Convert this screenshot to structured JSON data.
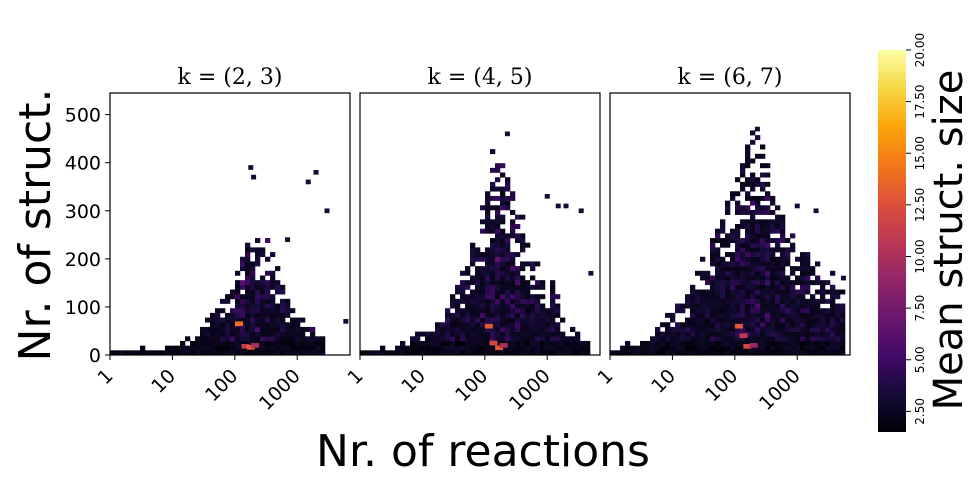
{
  "chart_data": {
    "type": "heatmap",
    "xlabel": "Nr. of reactions",
    "ylabel": "Nr. of struct.",
    "x_scale": "log",
    "xlim": [
      1,
      7000
    ],
    "ylim": [
      0,
      545
    ],
    "x_ticks": [
      1,
      10,
      100,
      1000
    ],
    "x_tick_labels": [
      "1",
      "10",
      "100",
      "1000"
    ],
    "y_ticks": [
      0,
      100,
      200,
      300,
      400,
      500
    ],
    "y_tick_labels": [
      "0",
      "100",
      "200",
      "300",
      "400",
      "500"
    ],
    "colorbar": {
      "label": "Mean struct. size",
      "colormap": "inferno",
      "range": [
        1.5,
        20
      ],
      "ticks": [
        2.5,
        5.0,
        7.5,
        10.0,
        12.5,
        15.0,
        17.5,
        20.0
      ],
      "tick_labels": [
        "2.50",
        "5.00",
        "7.50",
        "10.00",
        "12.50",
        "15.00",
        "17.50",
        "20.00"
      ]
    },
    "panels": [
      {
        "title": "k = (2, 3)",
        "envelope": [
          [
            1,
            8
          ],
          [
            10,
            20
          ],
          [
            30,
            60
          ],
          [
            60,
            120
          ],
          [
            100,
            150
          ],
          [
            150,
            230
          ],
          [
            200,
            260
          ],
          [
            300,
            250
          ],
          [
            500,
            170
          ],
          [
            800,
            100
          ],
          [
            1500,
            60
          ],
          [
            3000,
            40
          ]
        ],
        "outliers": [
          [
            180,
            390
          ],
          [
            200,
            370
          ],
          [
            1500,
            360
          ],
          [
            2000,
            380
          ],
          [
            700,
            240
          ],
          [
            3000,
            300
          ],
          [
            6000,
            70
          ]
        ],
        "hot_spots": [
          {
            "x": 110,
            "y": 65,
            "value": 14
          },
          {
            "x": 140,
            "y": 18,
            "value": 11
          },
          {
            "x": 170,
            "y": 16,
            "value": 13
          },
          {
            "x": 200,
            "y": 20,
            "value": 10
          }
        ]
      },
      {
        "title": "k = (4, 5)",
        "envelope": [
          [
            1,
            8
          ],
          [
            5,
            25
          ],
          [
            20,
            80
          ],
          [
            50,
            180
          ],
          [
            80,
            280
          ],
          [
            120,
            380
          ],
          [
            160,
            430
          ],
          [
            220,
            400
          ],
          [
            350,
            300
          ],
          [
            600,
            200
          ],
          [
            1200,
            150
          ],
          [
            2000,
            60
          ],
          [
            5000,
            40
          ]
        ],
        "outliers": [
          [
            230,
            460
          ],
          [
            1000,
            330
          ],
          [
            1500,
            310
          ],
          [
            2000,
            310
          ],
          [
            3500,
            300
          ],
          [
            5000,
            170
          ]
        ],
        "hot_spots": [
          {
            "x": 110,
            "y": 60,
            "value": 13
          },
          {
            "x": 130,
            "y": 25,
            "value": 12
          },
          {
            "x": 160,
            "y": 15,
            "value": 13
          },
          {
            "x": 190,
            "y": 20,
            "value": 10
          }
        ]
      },
      {
        "title": "k = (6, 7)",
        "envelope": [
          [
            1,
            10
          ],
          [
            4,
            40
          ],
          [
            15,
            120
          ],
          [
            40,
            220
          ],
          [
            80,
            330
          ],
          [
            130,
            410
          ],
          [
            180,
            440
          ],
          [
            280,
            420
          ],
          [
            400,
            350
          ],
          [
            800,
            250
          ],
          [
            1500,
            200
          ],
          [
            3000,
            160
          ],
          [
            6000,
            150
          ]
        ],
        "outliers": [
          [
            230,
            470
          ],
          [
            1000,
            310
          ],
          [
            2000,
            300
          ],
          [
            5500,
            160
          ]
        ],
        "hot_spots": [
          {
            "x": 110,
            "y": 60,
            "value": 13
          },
          {
            "x": 130,
            "y": 40,
            "value": 11
          },
          {
            "x": 150,
            "y": 18,
            "value": 12
          },
          {
            "x": 190,
            "y": 20,
            "value": 9
          }
        ]
      }
    ]
  }
}
